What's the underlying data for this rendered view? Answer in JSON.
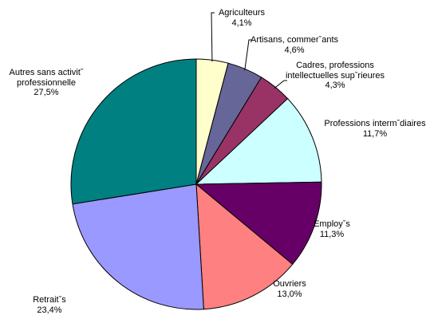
{
  "chart_data": {
    "type": "pie",
    "categories": [
      "Agriculteurs",
      "Artisans, commerˇants",
      "Cadres, professions intellectuelles supˇrieures",
      "Professions intermˇdiaires",
      "Employˇs",
      "Ouvriers",
      "Retraitˇs",
      "Autres sans activitˇ professionnelle"
    ],
    "values": [
      4.1,
      4.6,
      4.3,
      11.7,
      11.3,
      13.0,
      23.4,
      27.5
    ],
    "value_labels": [
      "4,1%",
      "4,6%",
      "4,3%",
      "11,7%",
      "11,3%",
      "13,0%",
      "23,4%",
      "27,5%"
    ],
    "colors": [
      "#ffffcc",
      "#666699",
      "#993366",
      "#ccffff",
      "#660066",
      "#ff8080",
      "#9999ff",
      "#008080"
    ]
  }
}
